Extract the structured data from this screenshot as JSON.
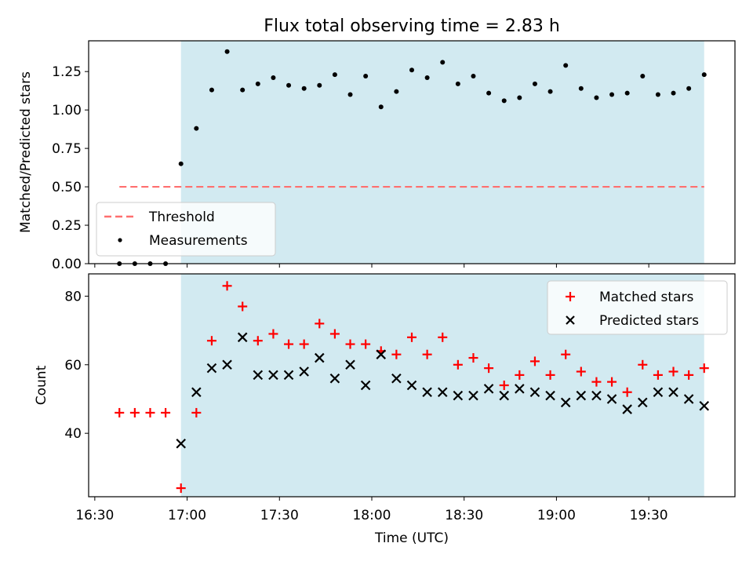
{
  "chart_data": [
    {
      "type": "scatter",
      "title": "Flux total observing time = 2.83 h",
      "xlabel": "",
      "ylabel": "Matched/Predicted stars",
      "x_ticks": [
        "16:30",
        "17:00",
        "17:30",
        "18:00",
        "18:30",
        "19:00",
        "19:30"
      ],
      "y_ticks": [
        "0.00",
        "0.25",
        "0.50",
        "0.75",
        "1.00",
        "1.25"
      ],
      "ylim": [
        0,
        1.45
      ],
      "x_range": [
        "16:28",
        "19:58"
      ],
      "shaded_region": {
        "start": "16:58",
        "end": "19:48",
        "color": "#add8e6"
      },
      "grid": false,
      "legend_position": "lower-left",
      "threshold": {
        "name": "Threshold",
        "value": 0.5,
        "x_start": "16:38",
        "x_end": "19:48",
        "color": "#ff6f6f",
        "style": "dashed"
      },
      "series": [
        {
          "name": "Measurements",
          "color": "#000000",
          "marker": "dot",
          "x": [
            "16:38",
            "16:43",
            "16:48",
            "16:53",
            "16:58",
            "17:03",
            "17:08",
            "17:13",
            "17:18",
            "17:23",
            "17:28",
            "17:33",
            "17:38",
            "17:43",
            "17:48",
            "17:53",
            "17:58",
            "18:03",
            "18:08",
            "18:13",
            "18:18",
            "18:23",
            "18:28",
            "18:33",
            "18:38",
            "18:43",
            "18:48",
            "18:53",
            "18:58",
            "19:03",
            "19:08",
            "19:13",
            "19:18",
            "19:23",
            "19:28",
            "19:33",
            "19:38",
            "19:43",
            "19:48"
          ],
          "y": [
            0,
            0,
            0,
            0,
            0.65,
            0.88,
            1.13,
            1.38,
            1.13,
            1.17,
            1.21,
            1.16,
            1.14,
            1.16,
            1.23,
            1.1,
            1.22,
            1.02,
            1.12,
            1.26,
            1.21,
            1.31,
            1.17,
            1.22,
            1.11,
            1.06,
            1.08,
            1.17,
            1.12,
            1.29,
            1.14,
            1.08,
            1.1,
            1.11,
            1.22,
            1.1,
            1.11,
            1.14,
            1.23
          ]
        }
      ]
    },
    {
      "type": "scatter",
      "title": "",
      "xlabel": "Time (UTC)",
      "ylabel": "Count",
      "x_ticks": [
        "16:30",
        "17:00",
        "17:30",
        "18:00",
        "18:30",
        "19:00",
        "19:30"
      ],
      "y_ticks": [
        "40",
        "60",
        "80"
      ],
      "ylim": [
        21.5,
        86.5
      ],
      "x_range": [
        "16:28",
        "19:58"
      ],
      "shaded_region": {
        "start": "16:58",
        "end": "19:48",
        "color": "#add8e6"
      },
      "grid": false,
      "legend_position": "upper-right",
      "series": [
        {
          "name": "Matched stars",
          "color": "#ff0000",
          "marker": "plus",
          "x": [
            "16:38",
            "16:43",
            "16:48",
            "16:53",
            "16:58",
            "17:03",
            "17:08",
            "17:13",
            "17:18",
            "17:23",
            "17:28",
            "17:33",
            "17:38",
            "17:43",
            "17:48",
            "17:53",
            "17:58",
            "18:03",
            "18:08",
            "18:13",
            "18:18",
            "18:23",
            "18:28",
            "18:33",
            "18:38",
            "18:43",
            "18:48",
            "18:53",
            "18:58",
            "19:03",
            "19:08",
            "19:13",
            "19:18",
            "19:23",
            "19:28",
            "19:33",
            "19:38",
            "19:43",
            "19:48"
          ],
          "y": [
            46,
            46,
            46,
            46,
            24,
            46,
            67,
            83,
            77,
            67,
            69,
            66,
            66,
            72,
            69,
            66,
            66,
            64,
            63,
            68,
            63,
            68,
            60,
            62,
            59,
            54,
            57,
            61,
            57,
            63,
            58,
            55,
            55,
            52,
            60,
            57,
            58,
            57,
            59
          ]
        },
        {
          "name": "Predicted stars",
          "color": "#000000",
          "marker": "x",
          "x": [
            "16:58",
            "17:03",
            "17:08",
            "17:13",
            "17:18",
            "17:23",
            "17:28",
            "17:33",
            "17:38",
            "17:43",
            "17:48",
            "17:53",
            "17:58",
            "18:03",
            "18:08",
            "18:13",
            "18:18",
            "18:23",
            "18:28",
            "18:33",
            "18:38",
            "18:43",
            "18:48",
            "18:53",
            "18:58",
            "19:03",
            "19:08",
            "19:13",
            "19:18",
            "19:23",
            "19:28",
            "19:33",
            "19:38",
            "19:43",
            "19:48"
          ],
          "y": [
            37,
            52,
            59,
            60,
            68,
            57,
            57,
            57,
            58,
            62,
            56,
            60,
            54,
            63,
            56,
            54,
            52,
            52,
            51,
            51,
            53,
            51,
            53,
            52,
            51,
            49,
            51,
            51,
            50,
            47,
            49,
            52,
            52,
            50,
            48
          ]
        }
      ]
    }
  ]
}
